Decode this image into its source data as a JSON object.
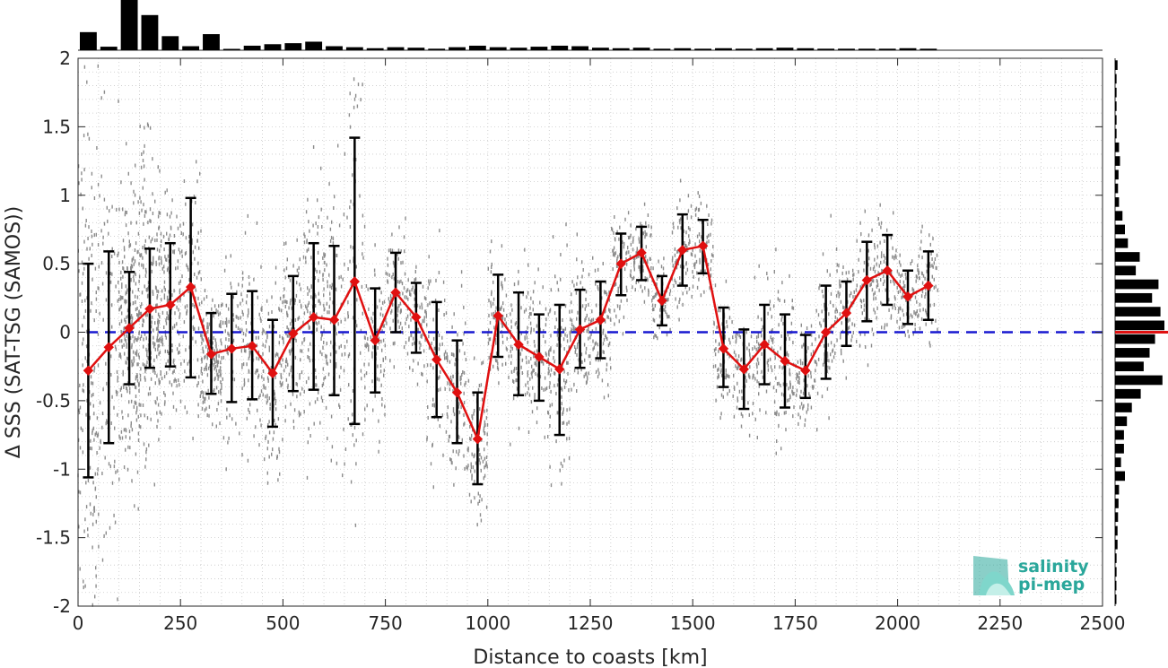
{
  "chart_data": {
    "type": "line",
    "xlabel": "Distance to coasts [km]",
    "ylabel": "Δ SSS (SAT-TSG (SAMOS))",
    "xlim": [
      0,
      2500
    ],
    "ylim": [
      -2,
      2
    ],
    "x_ticks": [
      "0",
      "250",
      "500",
      "750",
      "1000",
      "1250",
      "1500",
      "1750",
      "2000",
      "2250",
      "2500"
    ],
    "y_ticks": [
      "2",
      "1.5",
      "1",
      "0.5",
      "0",
      "-0.5",
      "-1",
      "-1.5",
      "-2"
    ],
    "grid": true,
    "zero_line": 0,
    "series": [
      {
        "x": [
          25,
          75,
          125,
          175,
          225,
          275,
          325,
          375,
          425,
          475,
          525,
          575,
          625,
          675,
          725,
          775,
          825,
          875,
          925,
          975,
          1025,
          1075,
          1125,
          1175,
          1225,
          1275,
          1325,
          1375,
          1425,
          1475,
          1525,
          1575,
          1625,
          1675,
          1725,
          1775,
          1825,
          1875,
          1925,
          1975,
          2025,
          2075
        ],
        "values": [
          -0.28,
          -0.11,
          0.03,
          0.17,
          0.2,
          0.33,
          -0.16,
          -0.12,
          -0.1,
          -0.3,
          -0.01,
          0.11,
          0.09,
          0.37,
          -0.06,
          0.29,
          0.11,
          -0.2,
          -0.44,
          -0.78,
          0.12,
          -0.09,
          -0.18,
          -0.27,
          0.02,
          0.09,
          0.5,
          0.58,
          0.23,
          0.6,
          0.63,
          -0.12,
          -0.27,
          -0.09,
          -0.21,
          -0.28,
          0.0,
          0.14,
          0.38,
          0.45,
          0.26,
          0.34
        ],
        "err_low": [
          -1.06,
          -0.81,
          -0.38,
          -0.26,
          -0.25,
          -0.33,
          -0.45,
          -0.51,
          -0.49,
          -0.69,
          -0.43,
          -0.42,
          -0.46,
          -0.67,
          -0.44,
          0.0,
          -0.15,
          -0.62,
          -0.81,
          -1.11,
          -0.18,
          -0.46,
          -0.5,
          -0.75,
          -0.26,
          -0.19,
          0.27,
          0.38,
          0.05,
          0.34,
          0.43,
          -0.4,
          -0.56,
          -0.38,
          -0.55,
          -0.48,
          -0.34,
          -0.1,
          0.08,
          0.2,
          0.06,
          0.09
        ],
        "err_high": [
          0.5,
          0.59,
          0.44,
          0.61,
          0.65,
          0.98,
          0.14,
          0.28,
          0.3,
          0.09,
          0.41,
          0.65,
          0.63,
          1.42,
          0.32,
          0.58,
          0.36,
          0.22,
          -0.06,
          -0.44,
          0.42,
          0.29,
          0.13,
          0.2,
          0.31,
          0.37,
          0.72,
          0.77,
          0.41,
          0.86,
          0.82,
          0.18,
          0.02,
          0.2,
          0.13,
          -0.02,
          0.34,
          0.37,
          0.66,
          0.71,
          0.45,
          0.59
        ]
      }
    ],
    "colors": {
      "line": "#e01010",
      "marker": "#e01010",
      "errorbar": "#000000",
      "zero_line": "#1818d0",
      "scatter": "#808080",
      "histogram": "#000000",
      "median_marker": "#e01010"
    },
    "top_histogram": {
      "bin_width_km": 50,
      "counts": [
        0.36,
        0.07,
        1.0,
        0.7,
        0.28,
        0.08,
        0.32,
        0.02,
        0.09,
        0.12,
        0.14,
        0.17,
        0.08,
        0.06,
        0.04,
        0.06,
        0.05,
        0.03,
        0.06,
        0.09,
        0.06,
        0.05,
        0.07,
        0.09,
        0.08,
        0.05,
        0.04,
        0.05,
        0.03,
        0.04,
        0.03,
        0.04,
        0.03,
        0.04,
        0.05,
        0.04,
        0.03,
        0.03,
        0.03,
        0.03,
        0.04,
        0.03
      ]
    },
    "right_histogram": {
      "bin_centers": [
        1.95,
        1.85,
        1.75,
        1.65,
        1.55,
        1.45,
        1.35,
        1.25,
        1.15,
        1.05,
        0.95,
        0.85,
        0.75,
        0.65,
        0.55,
        0.45,
        0.35,
        0.25,
        0.15,
        0.05,
        -0.05,
        -0.15,
        -0.25,
        -0.35,
        -0.45,
        -0.55,
        -0.65,
        -0.75,
        -0.85,
        -0.95,
        -1.05,
        -1.15,
        -1.25,
        -1.35,
        -1.45,
        -1.55,
        -1.65,
        -1.75,
        -1.85,
        -1.95
      ],
      "counts": [
        0.05,
        0.03,
        0.03,
        0.03,
        0.03,
        0.03,
        0.08,
        0.1,
        0.07,
        0.06,
        0.08,
        0.15,
        0.2,
        0.26,
        0.5,
        0.42,
        0.88,
        0.75,
        0.92,
        1.0,
        0.81,
        0.7,
        0.58,
        0.96,
        0.52,
        0.34,
        0.24,
        0.18,
        0.18,
        0.12,
        0.2,
        0.08,
        0.07,
        0.06,
        0.05,
        0.05,
        0.03,
        0.03,
        0.02,
        0.02
      ],
      "median": 0.0
    }
  },
  "logo": {
    "line1": "salinity",
    "line2": "pi-mep"
  }
}
